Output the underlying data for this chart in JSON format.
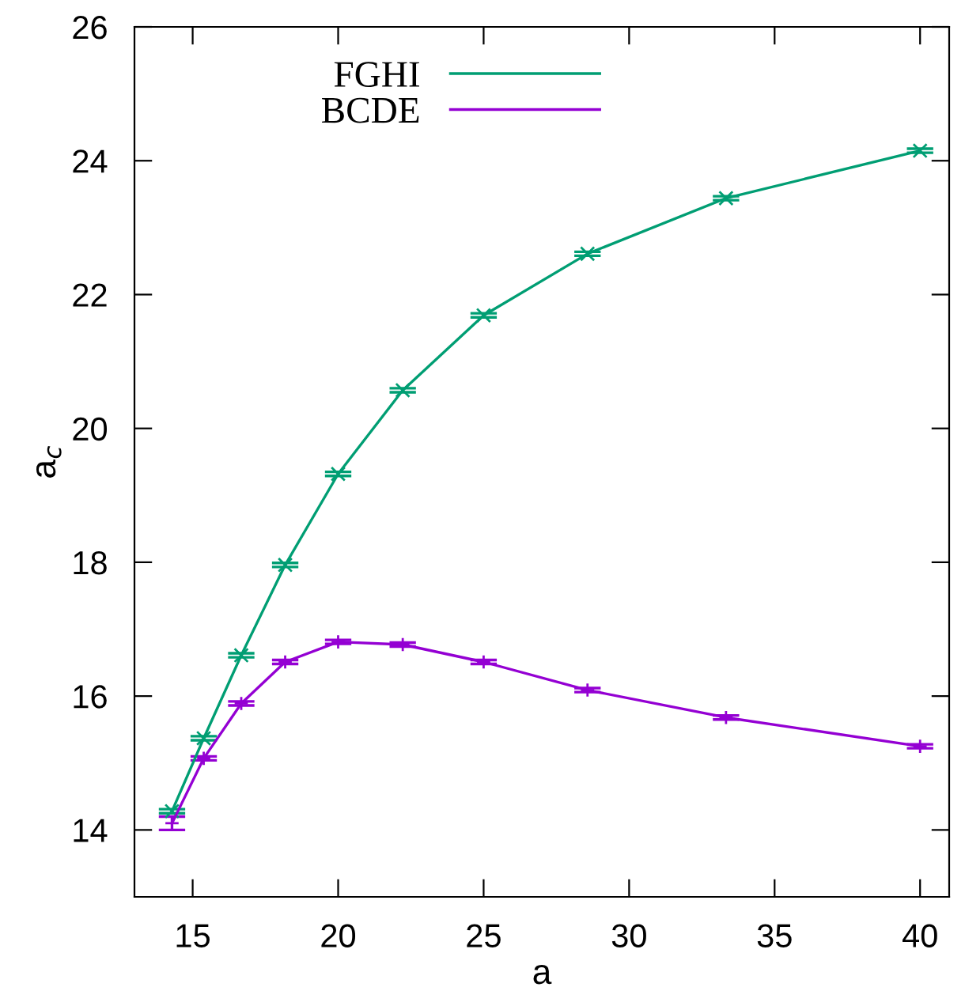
{
  "chart_data": {
    "type": "line",
    "xlabel": "a",
    "ylabel": "a$_{c}$",
    "xlim": [
      13,
      41
    ],
    "ylim": [
      13,
      26
    ],
    "xticks": [
      15,
      20,
      25,
      30,
      35,
      40
    ],
    "yticks": [
      14,
      16,
      18,
      20,
      22,
      24,
      26
    ],
    "grid": false,
    "legend": "top",
    "line_style": "solid",
    "series": [
      {
        "name": "FGHI",
        "color": "#009e73",
        "marker": "cross",
        "x": [
          14.29,
          15.38,
          16.67,
          18.18,
          20,
          22.22,
          25,
          28.57,
          33.33,
          40
        ],
        "values": [
          14.28,
          15.37,
          16.61,
          17.96,
          19.32,
          20.57,
          21.69,
          22.61,
          23.44,
          24.15
        ],
        "errors": [
          0.03,
          0.03,
          0.03,
          0.03,
          0.03,
          0.03,
          0.03,
          0.03,
          0.03,
          0.03
        ]
      },
      {
        "name": "BCDE",
        "color": "#9400d3",
        "marker": "plus",
        "x": [
          14.29,
          15.38,
          16.67,
          18.18,
          20,
          22.22,
          25,
          28.57,
          33.33,
          40
        ],
        "values": [
          14.1,
          15.07,
          15.89,
          16.51,
          16.81,
          16.77,
          16.51,
          16.09,
          15.68,
          15.25
        ],
        "errors": [
          0.1,
          0.03,
          0.03,
          0.03,
          0.03,
          0.03,
          0.03,
          0.03,
          0.03,
          0.03
        ]
      }
    ]
  }
}
